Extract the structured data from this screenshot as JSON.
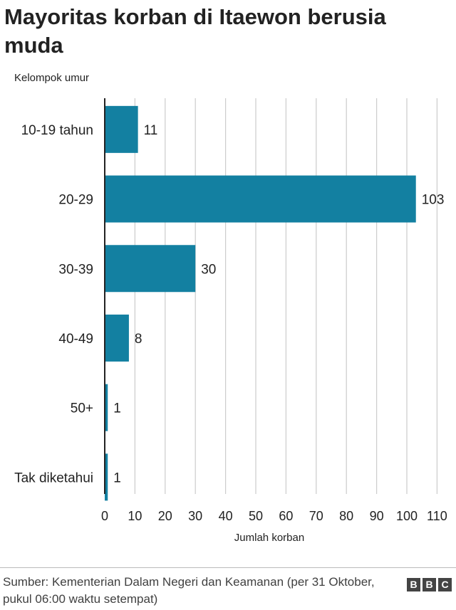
{
  "title": "Mayoritas korban di Itaewon berusia muda",
  "source": "Sumber: Kementerian Dalam Negeri dan Keamanan (per 31 Oktober, pukul 06:00 waktu setempat)",
  "logo": [
    "B",
    "B",
    "C"
  ],
  "chart_data": {
    "type": "bar",
    "orientation": "horizontal",
    "title": "Mayoritas korban di Itaewon berusia muda",
    "ylabel": "Kelompok umur",
    "xlabel": "Jumlah korban",
    "categories": [
      "10-19 tahun",
      "20-29",
      "30-39",
      "40-49",
      "50+",
      "Tak diketahui"
    ],
    "values": [
      11,
      103,
      30,
      8,
      1,
      1
    ],
    "xlim": [
      0,
      110
    ],
    "xticks": [
      0,
      10,
      20,
      30,
      40,
      50,
      60,
      70,
      80,
      90,
      100,
      110
    ],
    "grid": true,
    "bar_color": "#1380a1",
    "grid_color": "#cccccc"
  }
}
